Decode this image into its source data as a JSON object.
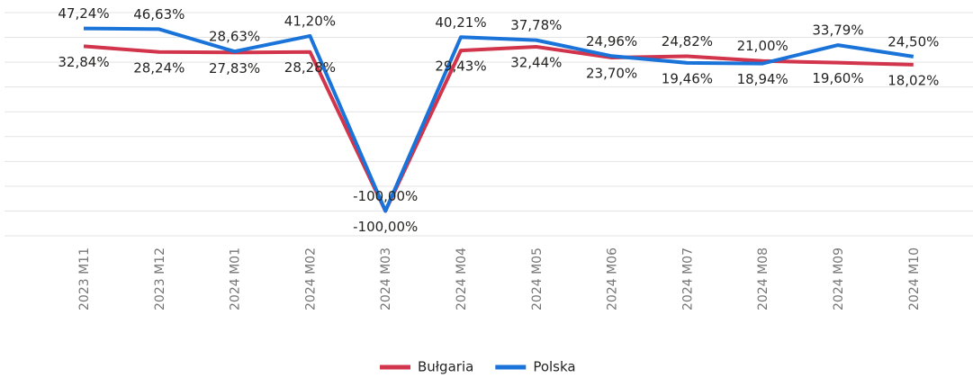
{
  "chart_data": {
    "type": "line",
    "categories": [
      "2023 M11",
      "2023 M12",
      "2024 M01",
      "2024 M02",
      "2024 M03",
      "2024 M04",
      "2024 M05",
      "2024 M06",
      "2024 M07",
      "2024 M08",
      "2024 M09",
      "2024 M10"
    ],
    "series": [
      {
        "name": "Bułgaria",
        "color": "#d1344b",
        "values": [
          32.84,
          28.24,
          27.83,
          28.28,
          -100,
          29.43,
          32.44,
          23.7,
          24.82,
          21.0,
          19.6,
          18.02
        ],
        "value_labels": [
          "32,84%",
          "28,24%",
          "27,83%",
          "28,28%",
          "-100,00%",
          "29,43%",
          "32,44%",
          "23,70%",
          "24,82%",
          "21,00%",
          "19,60%",
          "18,02%"
        ]
      },
      {
        "name": "Polska",
        "color": "#1a73d9",
        "values": [
          47.24,
          46.63,
          28.63,
          41.2,
          -100,
          40.21,
          37.78,
          24.96,
          19.46,
          18.94,
          33.79,
          24.5
        ],
        "value_labels": [
          "47,24%",
          "46,63%",
          "28,63%",
          "41,20%",
          "-100,00%",
          "40,21%",
          "37,78%",
          "24,96%",
          "19,46%",
          "18,94%",
          "33,79%",
          "24,50%"
        ]
      }
    ],
    "ylim": [
      -120,
      60
    ],
    "yticks": [
      -120,
      -100,
      -80,
      -60,
      -40,
      -20,
      0,
      20,
      40,
      60
    ],
    "grid": true,
    "legend": "bottom"
  }
}
